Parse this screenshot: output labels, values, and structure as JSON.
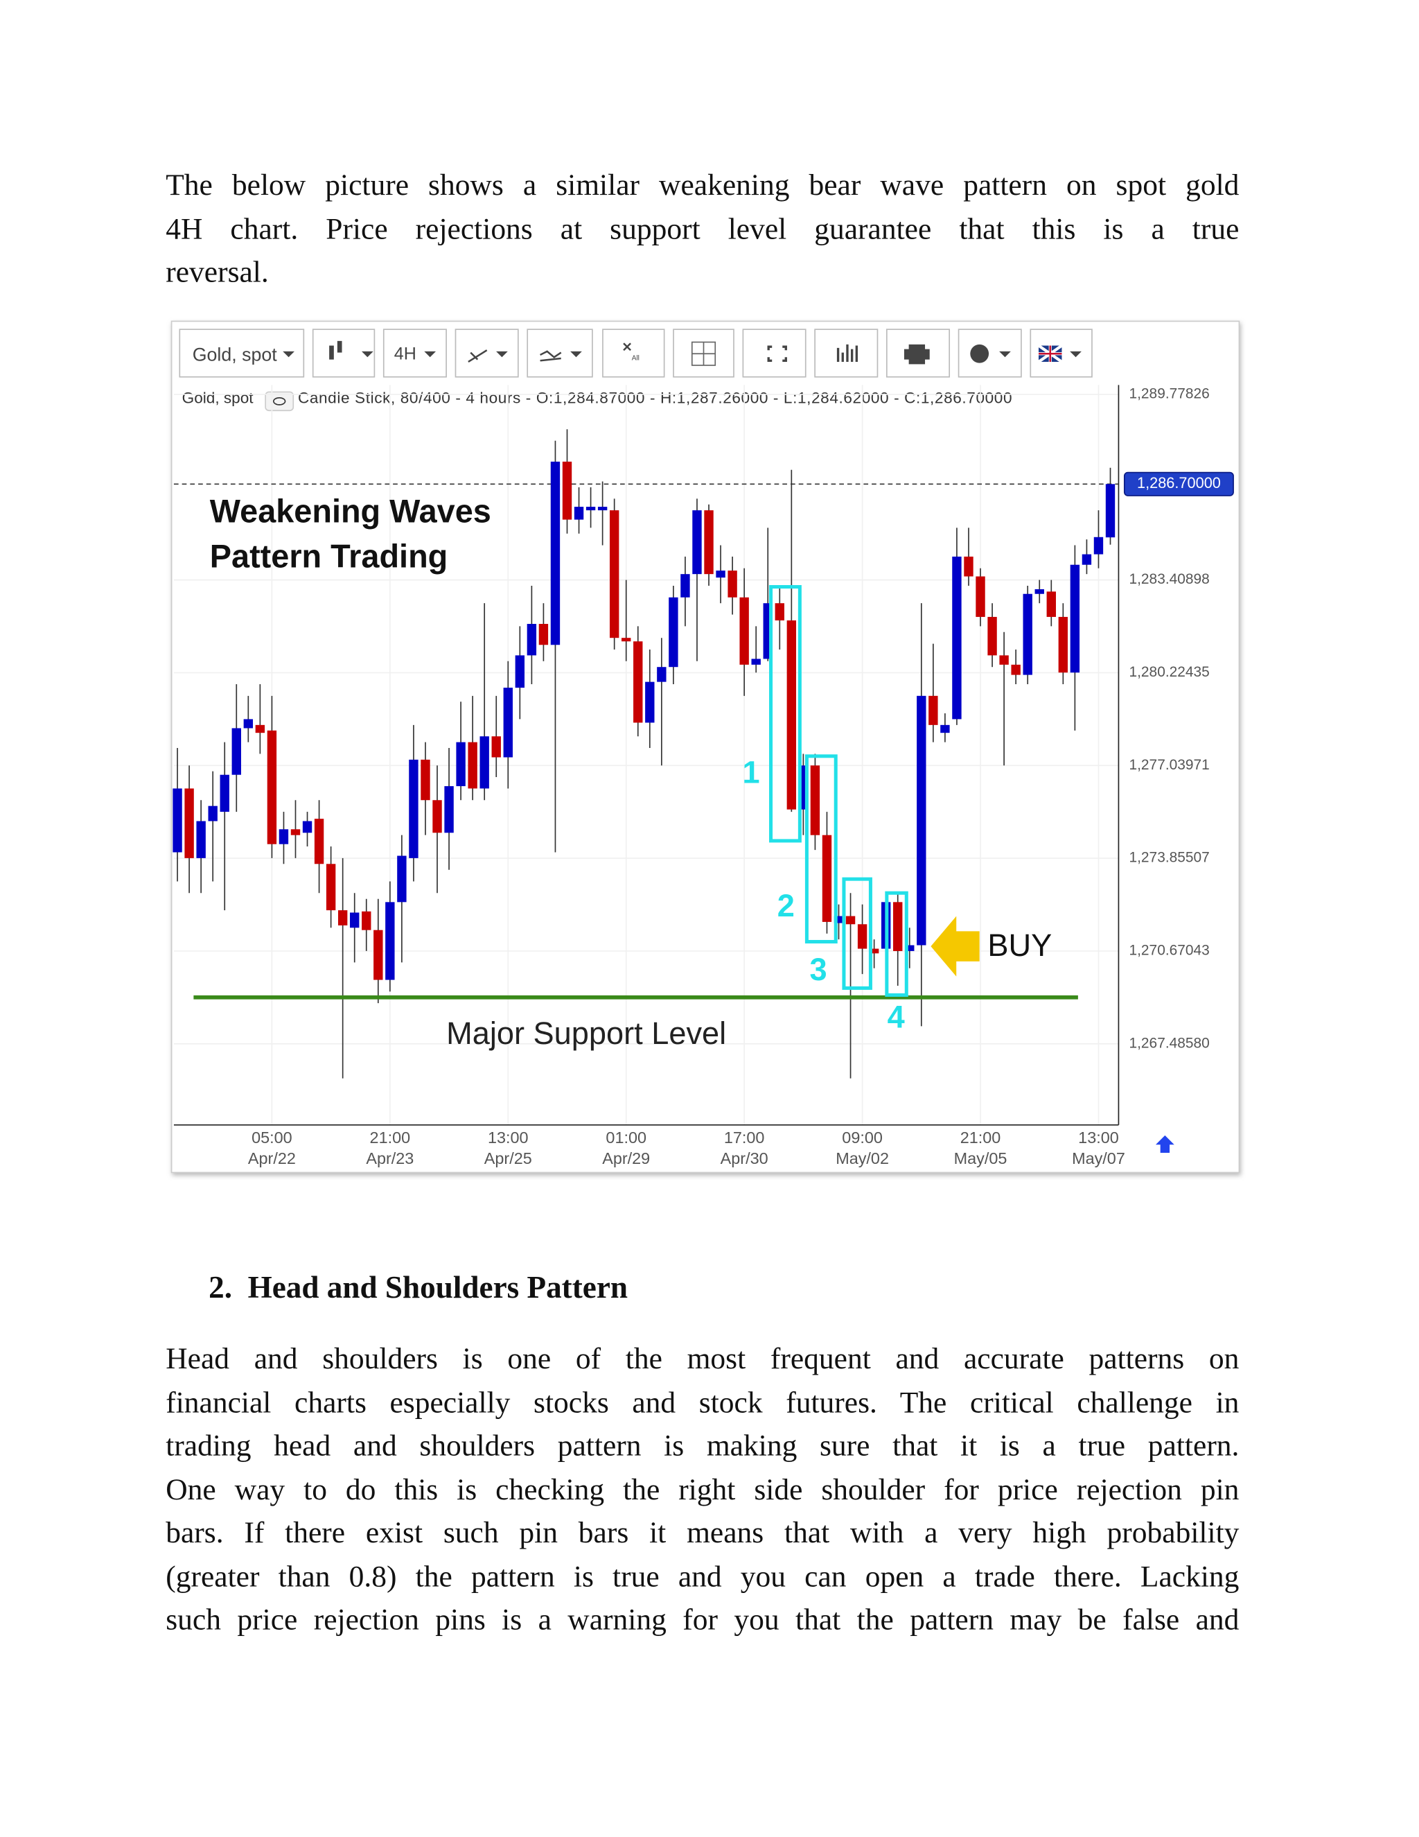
{
  "intro": {
    "lines": [
      "The below picture shows a similar weakening bear wave pattern on spot gold",
      "4H chart. Price rejections at support level guarantee that this is a true",
      "reversal."
    ]
  },
  "heading": "2.  Head and Shoulders Pattern",
  "body": {
    "lines": [
      "Head and shoulders is one of the most frequent and accurate patterns on",
      "financial charts especially stocks and stock futures. The critical challenge in",
      "trading head and shoulders pattern is making sure that it is a true pattern.",
      "One way to do this is checking the right side shoulder for price rejection pin",
      "bars. If there exist such pin bars it means that with a very high probability",
      "(greater than 0.8) the pattern is true and you can open a trade there.  Lacking",
      "such price rejection pins is a warning for you that the pattern may be false and"
    ]
  },
  "chart_data": {
    "type": "candlestick",
    "toolbar": {
      "symbol": "Gold, spot",
      "timeframe": "4H",
      "all": "All"
    },
    "info_symbol": "Gold, spot",
    "info": "Candle Stick, 80/400 - 4 hours - O:1,284.87000 - H:1,287.26000 - L:1,284.62000 - C:1,286.70000",
    "title_lines": [
      "Weakening Waves",
      "Pattern Trading"
    ],
    "categories": [
      null,
      null,
      null,
      null,
      null,
      null,
      null,
      null,
      {
        "time": "05:00",
        "date": "Apr/22"
      },
      null,
      null,
      null,
      null,
      null,
      null,
      null,
      null,
      null,
      {
        "time": "21:00",
        "date": "Apr/23"
      },
      null,
      null,
      null,
      null,
      null,
      null,
      null,
      null,
      null,
      {
        "time": "13:00",
        "date": "Apr/25"
      },
      null,
      null,
      null,
      null,
      null,
      null,
      null,
      null,
      null,
      {
        "time": "01:00",
        "date": "Apr/29"
      },
      null,
      null,
      null,
      null,
      null,
      null,
      null,
      null,
      null,
      {
        "time": "17:00",
        "date": "Apr/30"
      },
      null,
      null,
      null,
      null,
      null,
      null,
      null,
      null,
      null,
      {
        "time": "09:00",
        "date": "May/02"
      },
      null,
      null,
      null,
      null,
      null,
      null,
      null,
      null,
      null,
      {
        "time": "21:00",
        "date": "May/05"
      },
      null,
      null,
      null,
      null,
      null,
      null,
      null,
      null,
      null,
      {
        "time": "13:00",
        "date": "May/07"
      },
      null
    ],
    "open": [
      1274.06,
      1276.25,
      1273.86,
      1275.13,
      1275.45,
      1276.72,
      1278.32,
      1278.43,
      1278.24,
      1274.34,
      1274.85,
      1274.73,
      1275.21,
      1273.66,
      1272.07,
      1271.47,
      1272.03,
      1271.39,
      1269.68,
      1272.35,
      1273.86,
      1277.24,
      1275.85,
      1274.73,
      1276.33,
      1277.84,
      1276.25,
      1278.04,
      1277.32,
      1279.71,
      1280.82,
      1281.9,
      1281.18,
      1287.47,
      1285.48,
      1285.8,
      1285.8,
      1285.8,
      1281.42,
      1281.3,
      1278.51,
      1279.91,
      1280.42,
      1282.81,
      1283.61,
      1285.8,
      1283.49,
      1283.73,
      1282.81,
      1280.5,
      1280.7,
      1282.61,
      1282.02,
      1275.53,
      1277.04,
      1274.65,
      1271.63,
      1271.87,
      1271.59,
      1270.75,
      1270.75,
      1272.35,
      1270.67,
      1270.87,
      1279.43,
      1278.16,
      1278.63,
      1284.21,
      1283.53,
      1282.14,
      1280.82,
      1280.5,
      1280.15,
      1282.93,
      1283.01,
      1282.14,
      1280.23,
      1283.93,
      1284.29,
      1284.87
    ],
    "high": [
      1277.64,
      1277.04,
      1275.85,
      1276.84,
      1277.84,
      1279.83,
      1279.43,
      1279.83,
      1279.43,
      1275.45,
      1275.85,
      1275.45,
      1275.85,
      1274.26,
      1273.86,
      1272.66,
      1272.46,
      1272.46,
      1273.06,
      1274.65,
      1278.43,
      1277.84,
      1277.04,
      1277.64,
      1279.23,
      1279.43,
      1282.61,
      1279.43,
      1280.62,
      1281.82,
      1283.21,
      1282.61,
      1288.19,
      1288.58,
      1286.59,
      1286.59,
      1286.79,
      1286.2,
      1283.41,
      1281.82,
      1281.02,
      1281.42,
      1283.21,
      1284.21,
      1286.2,
      1286.0,
      1284.6,
      1284.21,
      1283.81,
      1281.82,
      1285.2,
      1283.21,
      1287.19,
      1277.44,
      1277.44,
      1275.45,
      1272.27,
      1272.66,
      1272.27,
      1271.07,
      1272.66,
      1272.66,
      1271.47,
      1282.61,
      1281.22,
      1278.83,
      1285.2,
      1285.2,
      1283.81,
      1282.61,
      1281.62,
      1281.02,
      1283.21,
      1283.41,
      1283.41,
      1282.61,
      1284.6,
      1284.8,
      1285.8,
      1287.26
    ],
    "low": [
      1273.06,
      1272.66,
      1272.66,
      1273.06,
      1272.07,
      1275.45,
      1277.84,
      1277.44,
      1273.86,
      1273.66,
      1273.86,
      1274.26,
      1272.66,
      1271.47,
      1266.3,
      1270.28,
      1270.67,
      1268.88,
      1269.28,
      1270.28,
      1273.06,
      1274.65,
      1272.66,
      1273.46,
      1275.85,
      1275.85,
      1275.85,
      1276.64,
      1276.25,
      1278.63,
      1279.83,
      1280.62,
      1274.06,
      1285.0,
      1285.0,
      1285.2,
      1284.6,
      1281.02,
      1280.62,
      1278.04,
      1277.64,
      1277.04,
      1279.83,
      1281.82,
      1280.62,
      1283.21,
      1282.61,
      1282.22,
      1279.43,
      1280.23,
      1280.62,
      1281.02,
      1275.45,
      1274.65,
      1274.14,
      1271.27,
      1271.07,
      1266.3,
      1269.88,
      1270.08,
      1270.28,
      1269.48,
      1270.08,
      1268.09,
      1277.84,
      1277.84,
      1278.43,
      1283.21,
      1281.82,
      1280.42,
      1277.04,
      1279.83,
      1279.83,
      1282.61,
      1281.82,
      1279.83,
      1278.24,
      1283.61,
      1283.81,
      1284.62
    ],
    "close": [
      1276.25,
      1273.86,
      1275.13,
      1275.65,
      1276.72,
      1278.32,
      1278.63,
      1278.16,
      1274.34,
      1274.85,
      1274.65,
      1275.13,
      1273.66,
      1272.07,
      1271.55,
      1271.99,
      1271.39,
      1269.68,
      1272.35,
      1273.94,
      1277.24,
      1275.85,
      1274.73,
      1276.33,
      1277.84,
      1276.25,
      1278.04,
      1277.32,
      1279.71,
      1280.82,
      1281.9,
      1281.18,
      1287.47,
      1285.48,
      1285.92,
      1285.92,
      1285.92,
      1281.42,
      1281.3,
      1278.51,
      1279.91,
      1280.42,
      1282.81,
      1283.61,
      1285.8,
      1283.61,
      1283.73,
      1282.81,
      1280.5,
      1280.7,
      1282.61,
      1282.02,
      1275.53,
      1277.04,
      1274.65,
      1271.67,
      1271.87,
      1271.59,
      1270.75,
      1270.59,
      1272.35,
      1270.67,
      1270.87,
      1279.43,
      1278.43,
      1278.43,
      1284.21,
      1283.53,
      1282.14,
      1280.82,
      1280.5,
      1280.15,
      1282.93,
      1283.09,
      1282.14,
      1280.23,
      1283.93,
      1284.29,
      1284.88,
      1286.7
    ],
    "up_color": "#0000c8",
    "down_color": "#c80000",
    "wick_color": "#333333",
    "ylim": [
      1264.7,
      1290.1
    ],
    "yticks": [
      {
        "value": 1289.77826,
        "label": "1,289.77826"
      },
      {
        "value": 1283.40898,
        "label": "1,283.40898"
      },
      {
        "value": 1280.22435,
        "label": "1,280.22435"
      },
      {
        "value": 1277.03971,
        "label": "1,277.03971"
      },
      {
        "value": 1273.85507,
        "label": "1,273.85507"
      },
      {
        "value": 1270.67043,
        "label": "1,270.67043"
      },
      {
        "value": 1267.4858,
        "label": "1,267.48580"
      }
    ],
    "grid": true,
    "last_price": {
      "value": 1286.7,
      "label": "1,286.70000"
    },
    "support_level": 1269.08,
    "support_label": "Major Support Level",
    "support_color": "#3a8a1a",
    "boxes": [
      "1",
      "2",
      "3",
      "4"
    ],
    "box_color": "#22e0e8",
    "buy_label": "BUY"
  }
}
